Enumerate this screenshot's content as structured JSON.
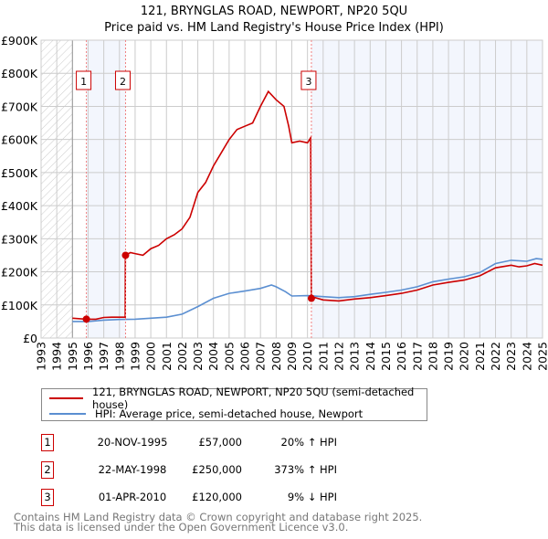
{
  "chart_data": {
    "type": "line",
    "title": "121, BRYNGLAS ROAD, NEWPORT, NP20 5QU",
    "subtitle": "Price paid vs. HM Land Registry's House Price Index (HPI)",
    "xlim": [
      1993,
      2025
    ],
    "ylim": [
      0,
      900000
    ],
    "y_ticks": [
      {
        "v": 0,
        "label": "£0"
      },
      {
        "v": 100000,
        "label": "£100K"
      },
      {
        "v": 200000,
        "label": "£200K"
      },
      {
        "v": 300000,
        "label": "£300K"
      },
      {
        "v": 400000,
        "label": "£400K"
      },
      {
        "v": 500000,
        "label": "£500K"
      },
      {
        "v": 600000,
        "label": "£600K"
      },
      {
        "v": 700000,
        "label": "£700K"
      },
      {
        "v": 800000,
        "label": "£800K"
      },
      {
        "v": 900000,
        "label": "£900K"
      }
    ],
    "x_ticks": [
      "1993",
      "1994",
      "1995",
      "1996",
      "1997",
      "1998",
      "1999",
      "2000",
      "2001",
      "2002",
      "2003",
      "2004",
      "2005",
      "2006",
      "2007",
      "2008",
      "2009",
      "2010",
      "2011",
      "2012",
      "2013",
      "2014",
      "2015",
      "2016",
      "2017",
      "2018",
      "2019",
      "2020",
      "2021",
      "2022",
      "2023",
      "2024",
      "2025"
    ],
    "grid": true,
    "series": [
      {
        "name": "121, BRYNGLAS ROAD, NEWPORT, NP20 5QU (semi-detached house)",
        "color": "#cc0000",
        "x": [
          1995,
          1995.88,
          1996.5,
          1997,
          1997.5,
          1998.37,
          1998.38,
          1998.7,
          1999,
          1999.5,
          2000,
          2000.5,
          2001,
          2001.5,
          2002,
          2002.5,
          2003,
          2003.5,
          2004,
          2004.5,
          2005,
          2005.5,
          2006,
          2006.5,
          2007,
          2007.5,
          2008,
          2008.5,
          2008.8,
          2009,
          2009.5,
          2010,
          2010.2,
          2010.25,
          2010.5,
          2011,
          2012,
          2013,
          2014,
          2015,
          2016,
          2017,
          2018,
          2019,
          2020,
          2021,
          2022,
          2023,
          2023.5,
          2024,
          2024.5,
          2025
        ],
        "y": [
          60000,
          57000,
          57000,
          62000,
          63000,
          63000,
          250000,
          258000,
          255000,
          250000,
          270000,
          280000,
          300000,
          312000,
          330000,
          365000,
          440000,
          470000,
          520000,
          560000,
          600000,
          630000,
          640000,
          650000,
          700000,
          745000,
          720000,
          700000,
          640000,
          590000,
          595000,
          590000,
          605000,
          120000,
          122000,
          115000,
          112000,
          118000,
          122000,
          128000,
          135000,
          145000,
          160000,
          168000,
          175000,
          188000,
          212000,
          220000,
          215000,
          218000,
          225000,
          220000
        ]
      },
      {
        "name": "HPI: Average price, semi-detached house, Newport",
        "color": "#5b8fd1",
        "x": [
          1995,
          1996,
          1997,
          1998,
          1999,
          2000,
          2001,
          2002,
          2003,
          2004,
          2005,
          2006,
          2007,
          2007.7,
          2008,
          2008.6,
          2009,
          2010,
          2011,
          2012,
          2013,
          2014,
          2015,
          2016,
          2017,
          2018,
          2019,
          2020,
          2021,
          2022,
          2023,
          2024,
          2024.6,
          2025
        ],
        "y": [
          50000,
          50000,
          54000,
          56000,
          57000,
          60000,
          63000,
          72000,
          95000,
          120000,
          135000,
          142000,
          150000,
          160000,
          155000,
          140000,
          127000,
          128000,
          125000,
          122000,
          125000,
          132000,
          138000,
          145000,
          155000,
          170000,
          178000,
          185000,
          198000,
          225000,
          235000,
          232000,
          240000,
          238000
        ]
      }
    ],
    "sales": [
      {
        "id": "1",
        "x": 1995.89,
        "y": 57000
      },
      {
        "id": "2",
        "x": 1998.39,
        "y": 250000
      },
      {
        "id": "3",
        "x": 2010.25,
        "y": 120000
      }
    ]
  },
  "legend": {
    "property": "121, BRYNGLAS ROAD, NEWPORT, NP20 5QU (semi-detached house)",
    "hpi": "HPI: Average price, semi-detached house, Newport"
  },
  "transactions": [
    {
      "id": "1",
      "date": "20-NOV-1995",
      "price": "£57,000",
      "hpi": "20% ↑ HPI"
    },
    {
      "id": "2",
      "date": "22-MAY-1998",
      "price": "£250,000",
      "hpi": "373% ↑ HPI"
    },
    {
      "id": "3",
      "date": "01-APR-2010",
      "price": "£120,000",
      "hpi": "9% ↓ HPI"
    }
  ],
  "footer": {
    "line1": "Contains HM Land Registry data © Crown copyright and database right 2025.",
    "line2": "This data is licensed under the Open Government Licence v3.0."
  }
}
